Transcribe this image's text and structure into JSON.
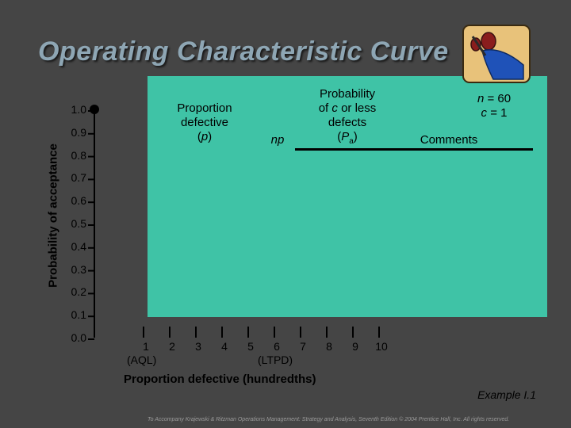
{
  "slide": {
    "title": "Operating Characteristic Curve",
    "example_label": "Example I.1",
    "footer": "To Accompany Krajewski & Ritzman Operations Management: Strategy and Analysis, Seventh Edition © 2004 Prentice Hall, Inc. All rights reserved."
  },
  "table_header": {
    "col_p": "Proportion defective (p)",
    "col_np": "np",
    "col_pa": "Probability of c or less defects (Pa)",
    "col_comments": "Comments",
    "params": "n = 60 c = 1"
  },
  "chart_data": {
    "type": "line",
    "ylabel": "Probability of acceptance",
    "xlabel": "Proportion defective (hundredths)",
    "ylim": [
      0.0,
      1.0
    ],
    "xlim": [
      0,
      10
    ],
    "y_ticks": [
      "0.0",
      "0.1",
      "0.2",
      "0.3",
      "0.4",
      "0.5",
      "0.6",
      "0.7",
      "0.8",
      "0.9",
      "1.0"
    ],
    "x_ticks": [
      "1",
      "2",
      "3",
      "4",
      "5",
      "6",
      "7",
      "8",
      "9",
      "10"
    ],
    "x_annotations": [
      {
        "x": 1,
        "label": "(AQL)"
      },
      {
        "x": 6,
        "label": "(LTPD)"
      }
    ],
    "series": [
      {
        "x": [
          0
        ],
        "values": [
          1.0
        ]
      }
    ]
  },
  "colors": {
    "background": "#454545",
    "plot_fill": "#3fc3a6",
    "title_text": "#8ea6b4",
    "clipart_bg": "#e8c27a",
    "clipart_blue": "#1f52b8"
  }
}
